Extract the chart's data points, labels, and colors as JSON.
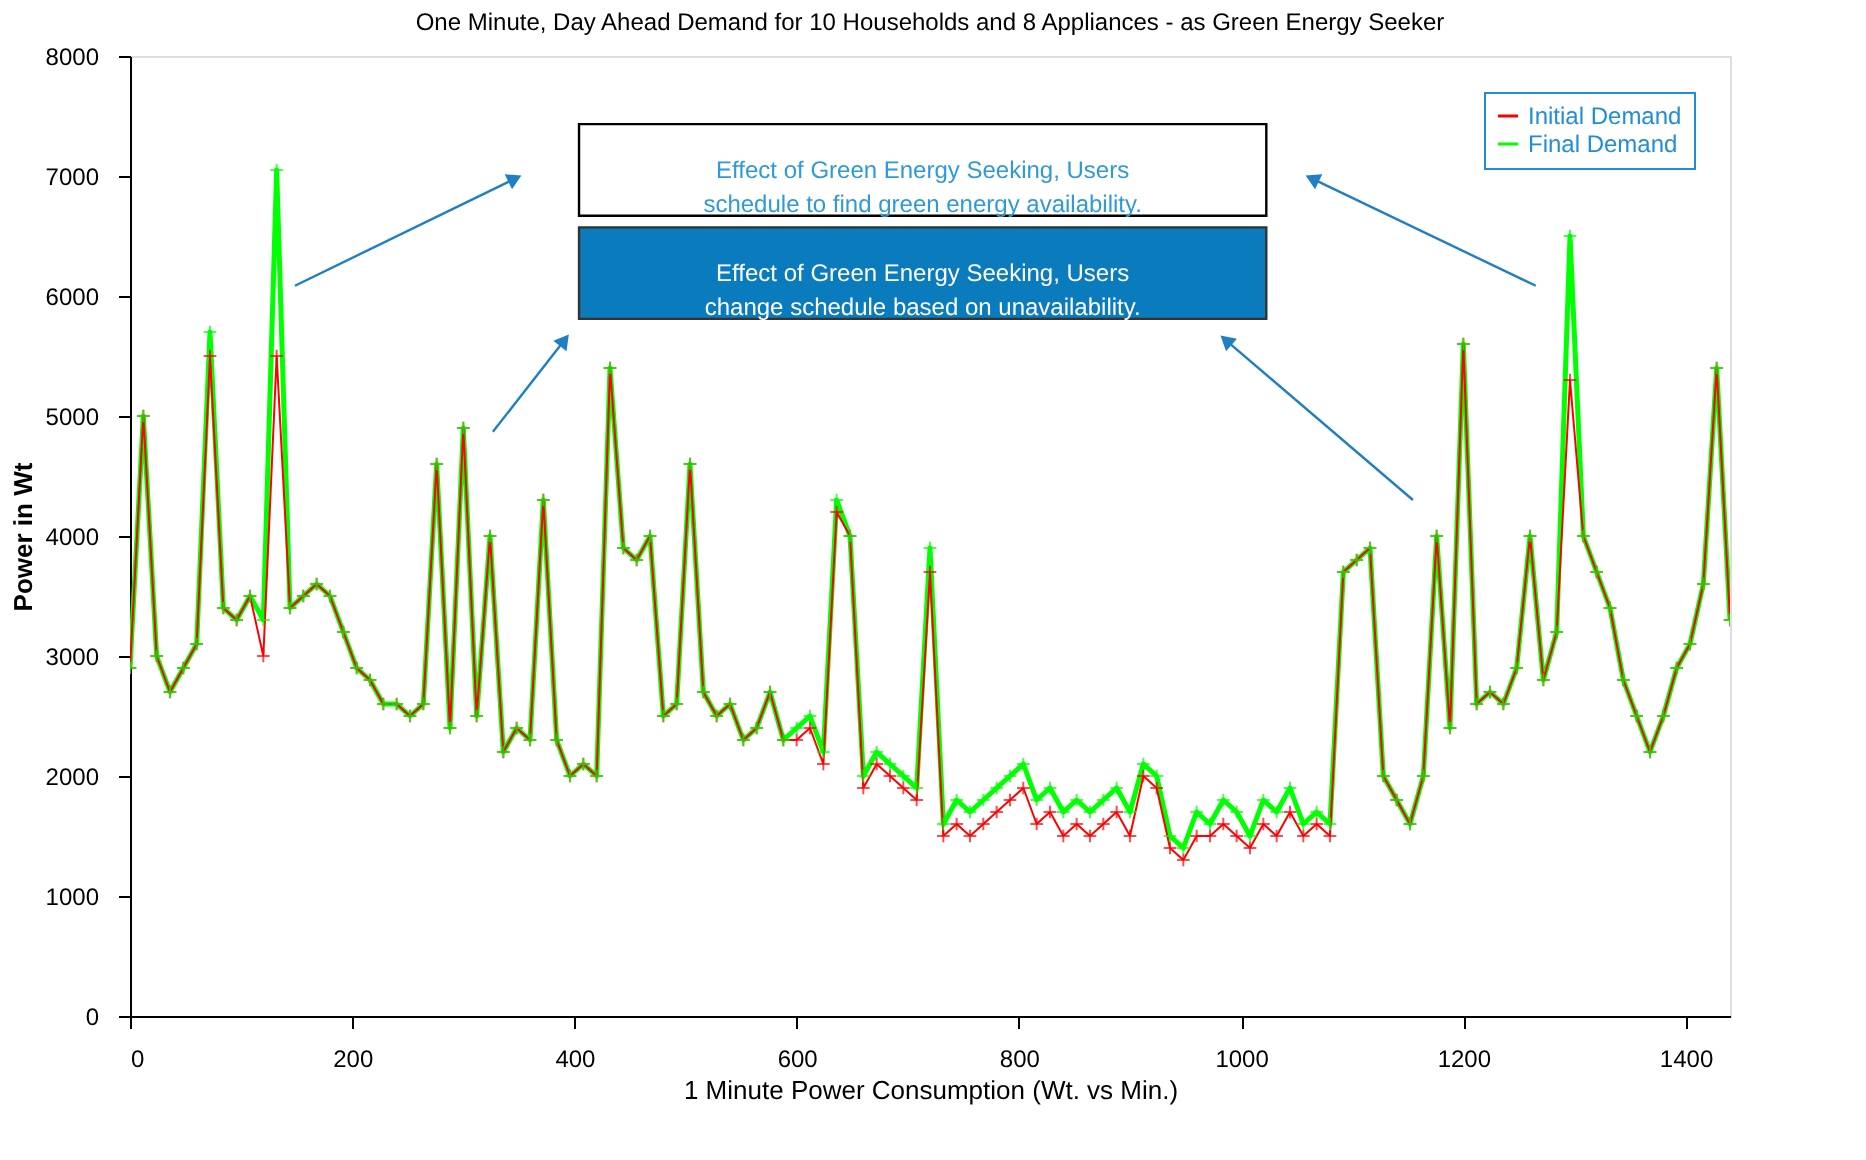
{
  "chart_data": {
    "type": "line",
    "title": "One Minute, Day Ahead Demand for 10 Households and 8 Appliances - as Green Energy Seeker",
    "xlabel": "1 Minute Power Consumption (Wt. vs Min.)",
    "ylabel": "Power in Wt",
    "annotations": [
      "Effect of Green Energy Seeking, Users\nschedule to find green energy availability.",
      "Effect of Green Energy Seeking, Users\nchange schedule based on unavailability."
    ],
    "x": [
      0,
      12,
      24,
      36,
      48,
      60,
      72,
      84,
      96,
      108,
      120,
      132,
      144,
      156,
      168,
      180,
      192,
      204,
      216,
      228,
      240,
      252,
      264,
      276,
      288,
      300,
      312,
      324,
      336,
      348,
      360,
      372,
      384,
      396,
      408,
      420,
      432,
      444,
      456,
      468,
      480,
      492,
      504,
      516,
      528,
      540,
      552,
      564,
      576,
      588,
      600,
      612,
      624,
      636,
      648,
      660,
      672,
      684,
      696,
      708,
      720,
      732,
      744,
      756,
      768,
      780,
      792,
      804,
      816,
      828,
      840,
      852,
      864,
      876,
      888,
      900,
      912,
      924,
      936,
      948,
      960,
      972,
      984,
      996,
      1008,
      1020,
      1032,
      1044,
      1056,
      1068,
      1080,
      1092,
      1104,
      1116,
      1128,
      1140,
      1152,
      1164,
      1176,
      1188,
      1200,
      1212,
      1224,
      1236,
      1248,
      1260,
      1272,
      1284,
      1296,
      1308,
      1320,
      1332,
      1344,
      1356,
      1368,
      1380,
      1392,
      1404,
      1416,
      1428,
      1440
    ],
    "series": [
      {
        "name": "Initial Demand",
        "color": "#ff0000",
        "values": [
          2900,
          5000,
          3000,
          2700,
          2900,
          3100,
          5500,
          3400,
          3300,
          3500,
          3000,
          5500,
          3400,
          3500,
          3600,
          3500,
          3200,
          2900,
          2800,
          2600,
          2600,
          2500,
          2600,
          4600,
          2400,
          4900,
          2500,
          4000,
          2200,
          2400,
          2300,
          4300,
          2300,
          2000,
          2100,
          2000,
          5400,
          3900,
          3800,
          4000,
          2500,
          2600,
          4600,
          2700,
          2500,
          2600,
          2300,
          2400,
          2700,
          2300,
          2300,
          2400,
          2100,
          4200,
          4000,
          1900,
          2100,
          2000,
          1900,
          1800,
          3700,
          1500,
          1600,
          1500,
          1600,
          1700,
          1800,
          1900,
          1600,
          1700,
          1500,
          1600,
          1500,
          1600,
          1700,
          1500,
          2000,
          1900,
          1400,
          1300,
          1500,
          1500,
          1600,
          1500,
          1400,
          1600,
          1500,
          1700,
          1500,
          1600,
          1500,
          3700,
          3800,
          3900,
          2000,
          1800,
          1600,
          2000,
          4000,
          2400,
          5600,
          2600,
          2700,
          2600,
          2900,
          4000,
          2800,
          3200,
          5300,
          4000,
          3700,
          3400,
          2800,
          2500,
          2200,
          2500,
          2900,
          3100,
          3600,
          5400,
          3300
        ]
      },
      {
        "name": "Final Demand",
        "color": "#00ff00",
        "values": [
          2900,
          5000,
          3000,
          2700,
          2900,
          3100,
          5700,
          3400,
          3300,
          3500,
          3300,
          7050,
          3400,
          3500,
          3600,
          3500,
          3200,
          2900,
          2800,
          2600,
          2600,
          2500,
          2600,
          4600,
          2400,
          4900,
          2500,
          4000,
          2200,
          2400,
          2300,
          4300,
          2300,
          2000,
          2100,
          2000,
          5400,
          3900,
          3800,
          4000,
          2500,
          2600,
          4600,
          2700,
          2500,
          2600,
          2300,
          2400,
          2700,
          2300,
          2400,
          2500,
          2200,
          4300,
          4000,
          2000,
          2200,
          2100,
          2000,
          1900,
          3900,
          1600,
          1800,
          1700,
          1800,
          1900,
          2000,
          2100,
          1800,
          1900,
          1700,
          1800,
          1700,
          1800,
          1900,
          1700,
          2100,
          2000,
          1500,
          1400,
          1700,
          1600,
          1800,
          1700,
          1500,
          1800,
          1700,
          1900,
          1600,
          1700,
          1600,
          3700,
          3800,
          3900,
          2000,
          1800,
          1600,
          2000,
          4000,
          2400,
          5600,
          2600,
          2700,
          2600,
          2900,
          4000,
          2800,
          3200,
          6500,
          4000,
          3700,
          3400,
          2800,
          2500,
          2200,
          2500,
          2900,
          3100,
          3600,
          5400,
          3300
        ]
      }
    ],
    "xlim": [
      0,
      1440
    ],
    "xticks": [
      0,
      200,
      400,
      600,
      800,
      1000,
      1200,
      1400
    ],
    "ylim": [
      0,
      8000
    ],
    "yticks": [
      0,
      1000,
      2000,
      3000,
      4000,
      5000,
      6000,
      7000,
      8000
    ],
    "marker": "cross",
    "line_style": "solid",
    "legend": "top right",
    "grid": false
  }
}
